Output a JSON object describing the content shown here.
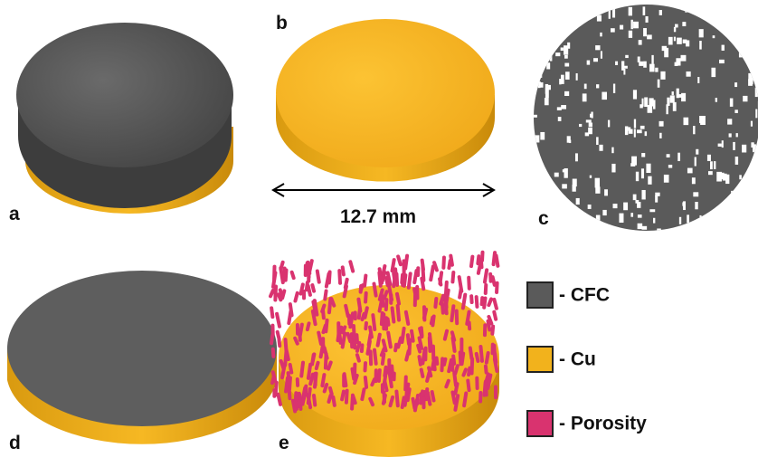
{
  "panels": {
    "a": "a",
    "b": "b",
    "c": "c",
    "d": "d",
    "e": "e"
  },
  "scale_label": "12.7 mm",
  "legend": [
    {
      "label": "- CFC",
      "color": "#5a5a5a"
    },
    {
      "label": "- Cu",
      "color": "#f2b21c"
    },
    {
      "label": "- Porosity",
      "color": "#d9336f"
    }
  ]
}
